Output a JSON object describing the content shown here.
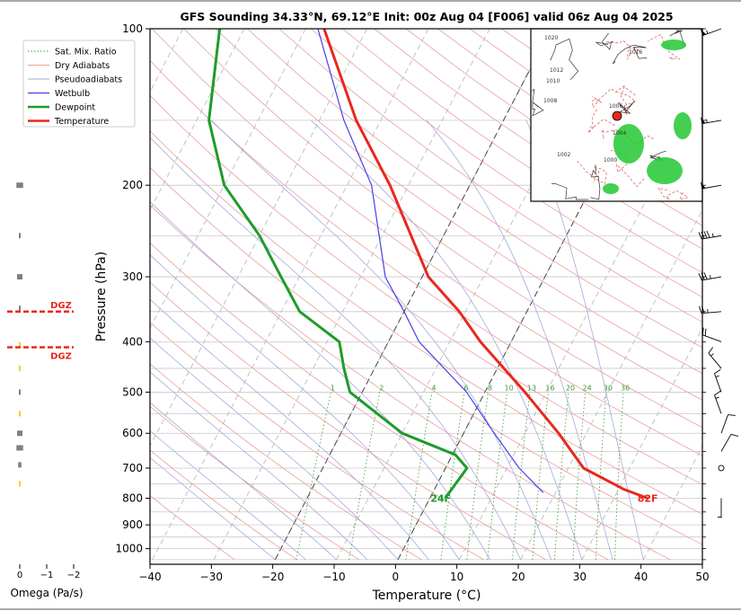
{
  "title": "GFS Sounding 34.33°N, 69.12°E Init: 00z Aug 04 [F006] valid 06z Aug 04 2025",
  "chart_data": {
    "type": "line",
    "title": "GFS Sounding 34.33°N, 69.12°E Init: 00z Aug 04 [F006] valid 06z Aug 04 2025",
    "xlabel": "Temperature (°C)",
    "ylabel": "Pressure (hPa)",
    "xlim": [
      -40,
      50
    ],
    "ylim": [
      1050,
      100
    ],
    "y_scale": "log",
    "skew": true,
    "x_ticks": [
      "−40",
      "−30",
      "−20",
      "−10",
      "0",
      "10",
      "20",
      "30",
      "40",
      "50"
    ],
    "y_ticks": [
      "100",
      "200",
      "300",
      "400",
      "500",
      "600",
      "700",
      "800",
      "900",
      "1000"
    ],
    "legend": {
      "placement": "top-left",
      "entries": [
        "Sat. Mix. Ratio",
        "Dry Adiabats",
        "Pseudoadiabats",
        "Wetbulb",
        "Dewpoint",
        "Temperature"
      ]
    },
    "series": [
      {
        "name": "Temperature",
        "color": "#e8281e",
        "points": [
          [
            800,
            35.5
          ],
          [
            770,
            31
          ],
          [
            700,
            22.5
          ],
          [
            600,
            15.5
          ],
          [
            500,
            6.5
          ],
          [
            400,
            -5
          ],
          [
            350,
            -11
          ],
          [
            300,
            -19
          ],
          [
            200,
            -33
          ],
          [
            150,
            -44
          ],
          [
            100,
            -57
          ]
        ]
      },
      {
        "name": "Dewpoint",
        "color": "#1e9c2a",
        "points": [
          [
            800,
            2.5
          ],
          [
            700,
            3.5
          ],
          [
            660,
            0.5
          ],
          [
            600,
            -10
          ],
          [
            500,
            -22
          ],
          [
            450,
            -25
          ],
          [
            400,
            -28
          ],
          [
            350,
            -37
          ],
          [
            300,
            -43
          ],
          [
            250,
            -50
          ],
          [
            200,
            -60
          ],
          [
            150,
            -68
          ],
          [
            100,
            -74
          ]
        ]
      },
      {
        "name": "Wetbulb",
        "color": "#4a3ee8",
        "points": [
          [
            780,
            18
          ],
          [
            700,
            12
          ],
          [
            600,
            5
          ],
          [
            500,
            -3
          ],
          [
            400,
            -15
          ],
          [
            350,
            -20
          ],
          [
            300,
            -26
          ],
          [
            200,
            -36
          ],
          [
            150,
            -46
          ],
          [
            100,
            -58
          ]
        ]
      }
    ],
    "mixing_ratio_labels": [
      "1",
      "2",
      "4",
      "6",
      "8",
      "10",
      "13",
      "16",
      "20",
      "24",
      "30",
      "36"
    ],
    "surface_labels": {
      "temperature": "82F",
      "dewpoint": "24F"
    },
    "omega": {
      "xlabel": "Omega (Pa/s)",
      "x_ticks": [
        "0",
        "−1",
        "−2"
      ],
      "xlim": [
        0,
        -2
      ],
      "dgz_label": "DGZ",
      "dgz_top": 350,
      "dgz_bottom": 410,
      "bars": [
        {
          "p": 200,
          "value": -0.25,
          "color": "#808080"
        },
        {
          "p": 250,
          "value": -0.05,
          "color": "#808080"
        },
        {
          "p": 300,
          "value": -0.2,
          "color": "#808080"
        },
        {
          "p": 345,
          "value": -0.05,
          "color": "#808080"
        },
        {
          "p": 405,
          "value": 0.05,
          "color": "#f2d01e"
        },
        {
          "p": 450,
          "value": 0.03,
          "color": "#f2d01e"
        },
        {
          "p": 500,
          "value": -0.03,
          "color": "#808080"
        },
        {
          "p": 550,
          "value": 0.03,
          "color": "#f2d01e"
        },
        {
          "p": 600,
          "value": -0.2,
          "color": "#808080"
        },
        {
          "p": 640,
          "value": -0.25,
          "color": "#808080"
        },
        {
          "p": 690,
          "value": -0.12,
          "color": "#808080"
        },
        {
          "p": 750,
          "value": 0.03,
          "color": "#f2d01e"
        }
      ]
    },
    "wind_barbs": [
      {
        "p": 100,
        "direction": 250,
        "speed": 55
      },
      {
        "p": 150,
        "direction": 260,
        "speed": 55
      },
      {
        "p": 200,
        "direction": 260,
        "speed": 50
      },
      {
        "p": 250,
        "direction": 260,
        "speed": 45
      },
      {
        "p": 300,
        "direction": 260,
        "speed": 35
      },
      {
        "p": 350,
        "direction": 265,
        "speed": 25
      },
      {
        "p": 400,
        "direction": 290,
        "speed": 20
      },
      {
        "p": 450,
        "direction": 320,
        "speed": 15
      },
      {
        "p": 500,
        "direction": 340,
        "speed": 15
      },
      {
        "p": 550,
        "direction": 340,
        "speed": 15
      },
      {
        "p": 600,
        "direction": 20,
        "speed": 10
      },
      {
        "p": 650,
        "direction": 30,
        "speed": 10
      },
      {
        "p": 700,
        "direction": 0,
        "speed": 0
      },
      {
        "p": 800,
        "direction": 180,
        "speed": 5
      }
    ],
    "inset_map": {
      "contour_labels": [
        "1020",
        "1016",
        "1012",
        "1010",
        "1008",
        "1006",
        "1004",
        "1002",
        "1000"
      ],
      "marker": "point location"
    }
  }
}
